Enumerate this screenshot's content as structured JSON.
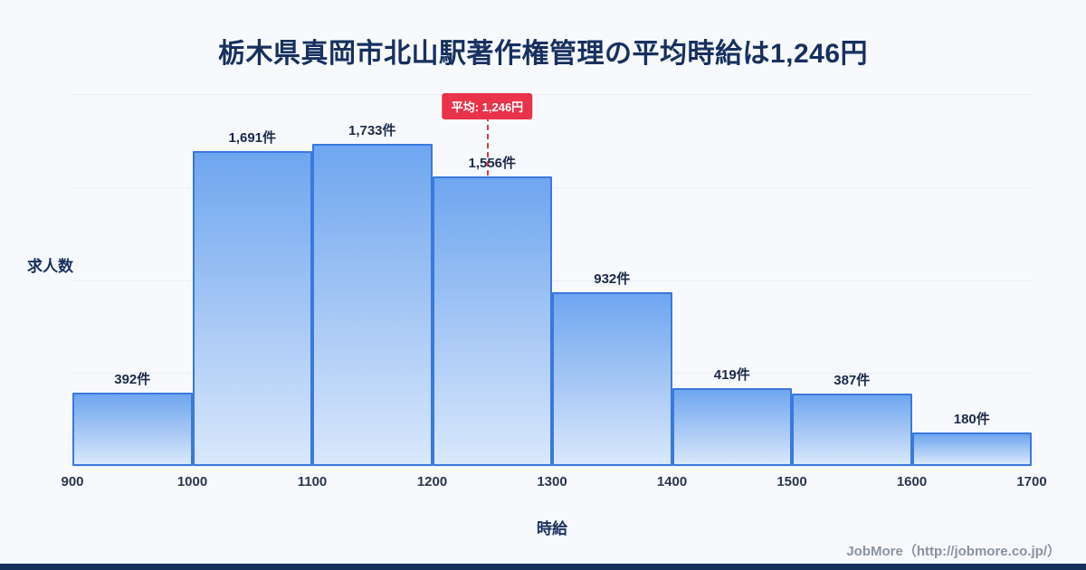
{
  "page": {
    "footer": "JobMore（http://jobmore.co.jp/）"
  },
  "chart_data": {
    "type": "bar",
    "title": "栃木県真岡市北山駅著作権管理の平均時給は1,246円",
    "xlabel": "時給",
    "ylabel": "求人数",
    "x_ticks": [
      "900",
      "1000",
      "1100",
      "1200",
      "1300",
      "1400",
      "1500",
      "1600",
      "1700"
    ],
    "bin_edges": [
      900,
      1000,
      1100,
      1200,
      1300,
      1400,
      1500,
      1600,
      1700
    ],
    "values": [
      392,
      1691,
      1733,
      1556,
      932,
      419,
      387,
      180
    ],
    "bar_labels": [
      "392件",
      "1,691件",
      "1,733件",
      "1,556件",
      "932件",
      "419件",
      "387件",
      "180件"
    ],
    "average": {
      "value": 1246,
      "label": "平均: 1,246円"
    },
    "ylim": [
      0,
      2000
    ],
    "grid": "horizontal-subtle",
    "legend": "none",
    "colors": {
      "bar_border": "#3a79dd",
      "bar_fill_top": "#6ea6ef",
      "bar_fill_bottom": "#d9e8fc",
      "average_line": "#e0394b",
      "average_badge_bg": "#e8334a",
      "title_text": "#17305f",
      "background": "#f7f9fc",
      "bottom_strip": "#16305e"
    }
  }
}
